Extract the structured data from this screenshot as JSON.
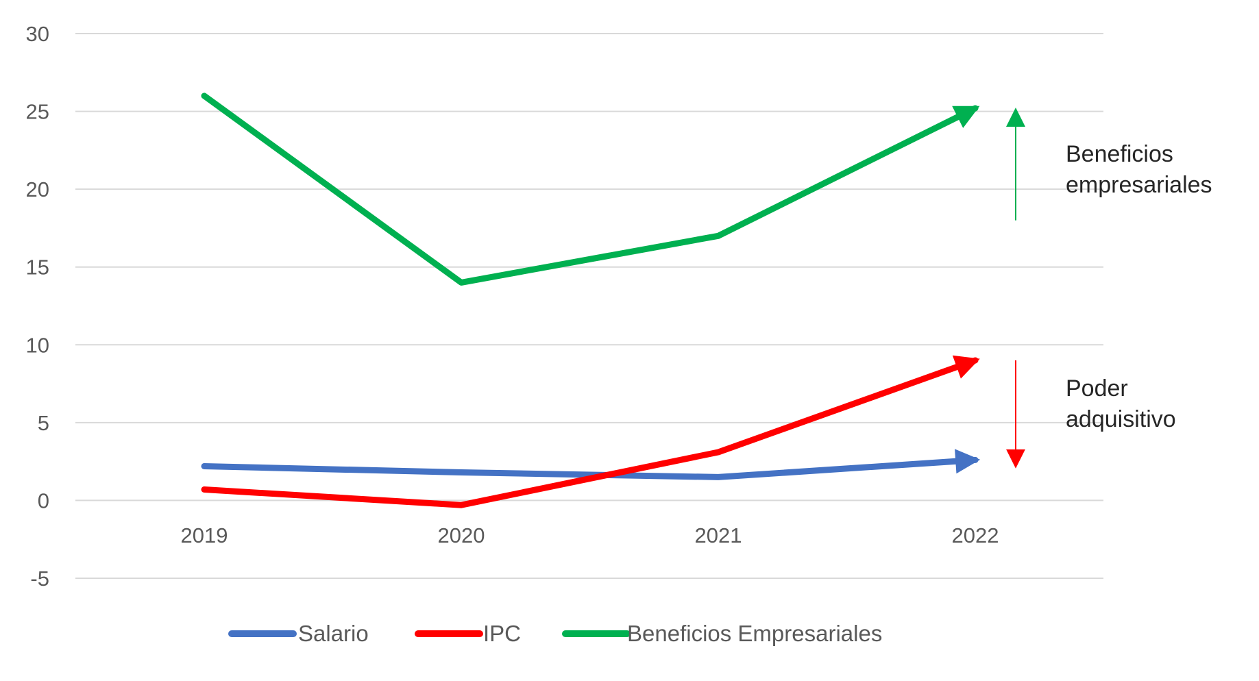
{
  "chart_data": {
    "type": "line",
    "categories": [
      "2019",
      "2020",
      "2021",
      "2022"
    ],
    "ylim": [
      -5,
      30
    ],
    "yticks": [
      -5,
      0,
      5,
      10,
      15,
      20,
      25,
      30
    ],
    "grid": true,
    "legend_position": "bottom",
    "series": [
      {
        "name": "Salario",
        "values": [
          2.2,
          1.8,
          1.5,
          2.6
        ],
        "color": "#4472C4",
        "end_arrow": true
      },
      {
        "name": "IPC",
        "values": [
          0.7,
          -0.3,
          3.1,
          9.0
        ],
        "color": "#FF0000",
        "end_arrow": true
      },
      {
        "name": "Beneficios Empresariales",
        "values": [
          26.0,
          14.0,
          17.0,
          25.2
        ],
        "color": "#00B050",
        "end_arrow": true
      }
    ],
    "annotations": [
      {
        "lines": [
          "Beneficios",
          "empresariales"
        ],
        "arrow_from": 18,
        "arrow_to": 25,
        "arrow_color": "#00B050"
      },
      {
        "lines": [
          "Poder",
          "adquisitivo"
        ],
        "arrow_from": 9,
        "arrow_to": 2.3,
        "arrow_color": "#FF0000"
      }
    ]
  }
}
